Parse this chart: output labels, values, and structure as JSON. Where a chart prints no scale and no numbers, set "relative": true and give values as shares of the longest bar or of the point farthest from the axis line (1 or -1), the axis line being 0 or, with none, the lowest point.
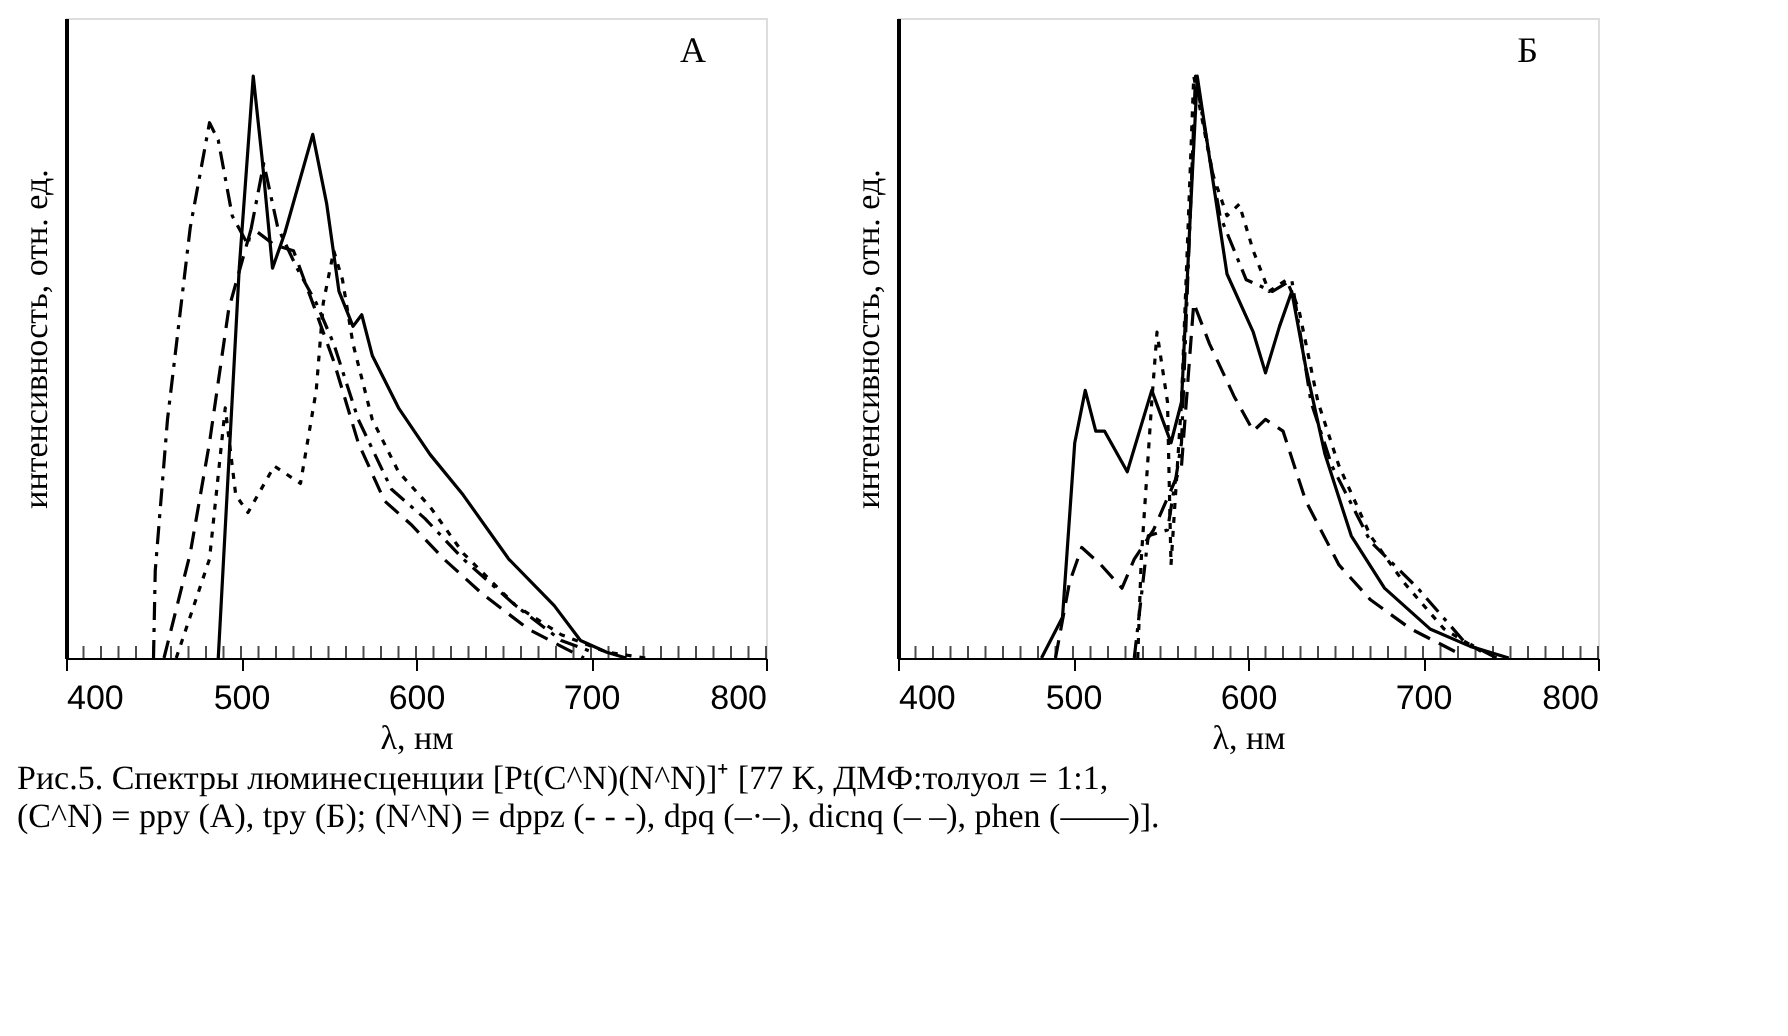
{
  "chart_data": [
    {
      "type": "line",
      "relative": true,
      "xlabel": "λ, нм",
      "ylabel": "интенсивность, отн. ед.",
      "xlim": [
        400,
        800
      ],
      "xticks": [
        400,
        500,
        600,
        700,
        800
      ],
      "grid": false,
      "marker": "none",
      "annotations": [
        "А"
      ],
      "series": [
        {
          "color": "#000000",
          "line_style": "dotted",
          "x": [
            463,
            482,
            491,
            497,
            504,
            519,
            534,
            543,
            547,
            553,
            558,
            564,
            575,
            590,
            608,
            627,
            657,
            683,
            709,
            731
          ],
          "values": [
            0,
            0.17,
            0.43,
            0.28,
            0.25,
            0.33,
            0.3,
            0.46,
            0.61,
            0.7,
            0.65,
            0.54,
            0.41,
            0.32,
            0.26,
            0.18,
            0.09,
            0.04,
            0.01,
            0
          ]
        },
        {
          "color": "#000000",
          "line_style": "dashdot",
          "x": [
            450,
            451,
            458,
            471,
            482,
            487,
            495,
            504,
            513,
            521,
            532,
            543,
            553,
            567,
            586,
            605,
            627,
            657,
            683,
            701
          ],
          "values": [
            0,
            0.15,
            0.41,
            0.74,
            0.92,
            0.89,
            0.76,
            0.71,
            0.85,
            0.74,
            0.67,
            0.61,
            0.54,
            0.41,
            0.29,
            0.24,
            0.17,
            0.09,
            0.03,
            0.01
          ]
        },
        {
          "color": "#000000",
          "line_style": "dashed",
          "x": [
            456,
            471,
            482,
            493,
            506,
            519,
            530,
            541,
            553,
            567,
            582,
            597,
            616,
            638,
            664,
            683,
            696
          ],
          "values": [
            0,
            0.18,
            0.37,
            0.6,
            0.74,
            0.71,
            0.7,
            0.61,
            0.51,
            0.37,
            0.27,
            0.23,
            0.17,
            0.11,
            0.05,
            0.02,
            0
          ]
        },
        {
          "color": "#000000",
          "line_style": "solid",
          "x": [
            487,
            499,
            507,
            512,
            518,
            525,
            541,
            549,
            556,
            564,
            569,
            575,
            590,
            608,
            627,
            653,
            679,
            694,
            709,
            720
          ],
          "values": [
            0,
            0.67,
            1.0,
            0.86,
            0.67,
            0.73,
            0.9,
            0.78,
            0.63,
            0.57,
            0.59,
            0.52,
            0.43,
            0.35,
            0.28,
            0.17,
            0.09,
            0.03,
            0.01,
            0
          ]
        }
      ]
    },
    {
      "type": "line",
      "relative": true,
      "xlabel": "λ, нм",
      "ylabel": "интенсивность, отн. ед.",
      "xlim": [
        400,
        800
      ],
      "xticks": [
        400,
        500,
        600,
        700,
        800
      ],
      "grid": false,
      "marker": "none",
      "annotations": [
        "Б",
        "Рис.5. Спектры люминесценции [Pt(C^N)(N^N)]⁺ [77 K, ДМФ:толуол = 1:1,",
        "(C^N) = ppy (А), tpy (Б); (N^N) = dppz (- - -), dpq (–·–), dicnq (– –), phen (——)]."
      ],
      "series": [
        {
          "color": "#000000",
          "line_style": "dotted",
          "x": [
            537,
            539,
            545,
            548,
            554,
            556,
            562,
            569,
            580,
            588,
            595,
            603,
            612,
            622,
            629,
            640,
            652,
            670,
            689,
            712,
            734
          ],
          "values": [
            0,
            0.17,
            0.44,
            0.56,
            0.44,
            0.16,
            0.44,
            1.0,
            0.83,
            0.76,
            0.78,
            0.7,
            0.63,
            0.65,
            0.6,
            0.44,
            0.33,
            0.21,
            0.13,
            0.05,
            0.01
          ]
        },
        {
          "color": "#000000",
          "line_style": "dashdot",
          "x": [
            535,
            543,
            554,
            562,
            570,
            584,
            599,
            614,
            625,
            636,
            648,
            670,
            697,
            723,
            742
          ],
          "values": [
            0,
            0.21,
            0.22,
            0.37,
            1.0,
            0.76,
            0.65,
            0.63,
            0.65,
            0.44,
            0.33,
            0.2,
            0.12,
            0.03,
            0
          ]
        },
        {
          "color": "#000000",
          "line_style": "dashed",
          "x": [
            490,
            498,
            505,
            516,
            528,
            535,
            546,
            562,
            569,
            578,
            592,
            603,
            610,
            620,
            633,
            652,
            670,
            693,
            719
          ],
          "values": [
            0,
            0.13,
            0.19,
            0.16,
            0.12,
            0.17,
            0.22,
            0.33,
            0.61,
            0.54,
            0.45,
            0.39,
            0.41,
            0.39,
            0.27,
            0.16,
            0.1,
            0.05,
            0.01
          ]
        },
        {
          "color": "#000000",
          "line_style": "solid",
          "x": [
            482,
            494,
            501,
            507,
            513,
            518,
            531,
            545,
            556,
            562,
            567,
            571,
            580,
            588,
            603,
            610,
            618,
            625,
            633,
            644,
            659,
            678,
            704,
            727,
            749
          ],
          "values": [
            0,
            0.07,
            0.37,
            0.46,
            0.39,
            0.39,
            0.32,
            0.46,
            0.37,
            0.44,
            0.76,
            1.0,
            0.82,
            0.66,
            0.56,
            0.49,
            0.57,
            0.63,
            0.5,
            0.35,
            0.21,
            0.12,
            0.05,
            0.02,
            0
          ]
        }
      ]
    }
  ]
}
